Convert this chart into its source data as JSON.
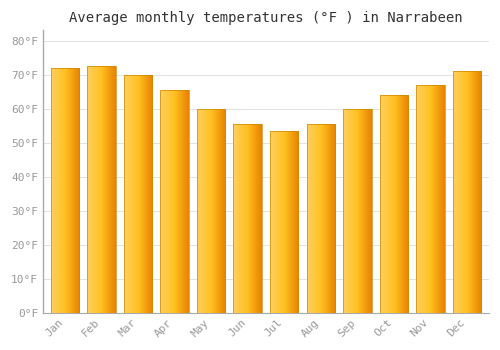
{
  "title": "Average monthly temperatures (°F ) in Narrabeen",
  "months": [
    "Jan",
    "Feb",
    "Mar",
    "Apr",
    "May",
    "Jun",
    "Jul",
    "Aug",
    "Sep",
    "Oct",
    "Nov",
    "Dec"
  ],
  "values": [
    72,
    72.5,
    70,
    65.5,
    60,
    55.5,
    53.5,
    55.5,
    60,
    64,
    67,
    71
  ],
  "bar_color_center": "#FFC020",
  "bar_color_left": "#FFD060",
  "bar_color_right": "#E88000",
  "background_color": "#FFFFFF",
  "ylim": [
    0,
    83
  ],
  "yticks": [
    0,
    10,
    20,
    30,
    40,
    50,
    60,
    70,
    80
  ],
  "ytick_labels": [
    "0°F",
    "10°F",
    "20°F",
    "30°F",
    "40°F",
    "50°F",
    "60°F",
    "70°F",
    "80°F"
  ],
  "title_fontsize": 10,
  "tick_fontsize": 8,
  "grid_color": "#dddddd",
  "font_family": "monospace",
  "tick_color": "#999999"
}
